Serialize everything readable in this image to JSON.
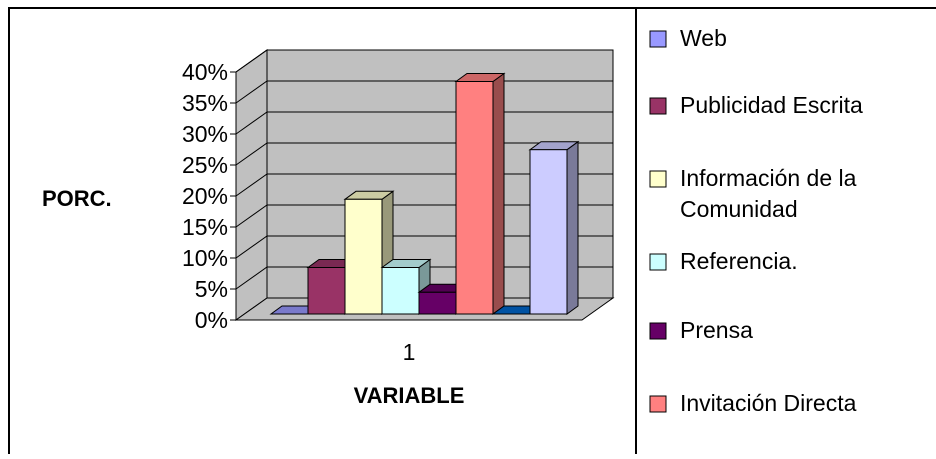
{
  "chart_data": {
    "type": "bar",
    "style": "3d-clustered-column",
    "categories": [
      "1"
    ],
    "ylabel": "PORC.",
    "xlabel": "VARIABLE",
    "ylim": [
      0,
      40
    ],
    "ytick_step": 5,
    "ytick_suffix": "%",
    "grid": true,
    "legend_position": "right",
    "series": [
      {
        "name": "Web",
        "values": [
          0
        ],
        "color": "#9999ff"
      },
      {
        "name": "Publicidad Escrita",
        "values": [
          7.5
        ],
        "color": "#993366"
      },
      {
        "name": "Información de la Comunidad",
        "values": [
          18.5
        ],
        "color": "#ffffcc",
        "legend_lines": [
          "Información de la",
          "Comunidad"
        ]
      },
      {
        "name": "Referencia.",
        "values": [
          7.5
        ],
        "color": "#ccffff"
      },
      {
        "name": "Prensa",
        "values": [
          3.5
        ],
        "color": "#660066"
      },
      {
        "name": "Invitación Directa",
        "values": [
          37.5
        ],
        "color": "#ff8080"
      },
      {
        "name": "",
        "values": [
          0
        ],
        "color": "#0066cc"
      },
      {
        "name": "",
        "values": [
          26.5
        ],
        "color": "#ccccff"
      }
    ]
  }
}
